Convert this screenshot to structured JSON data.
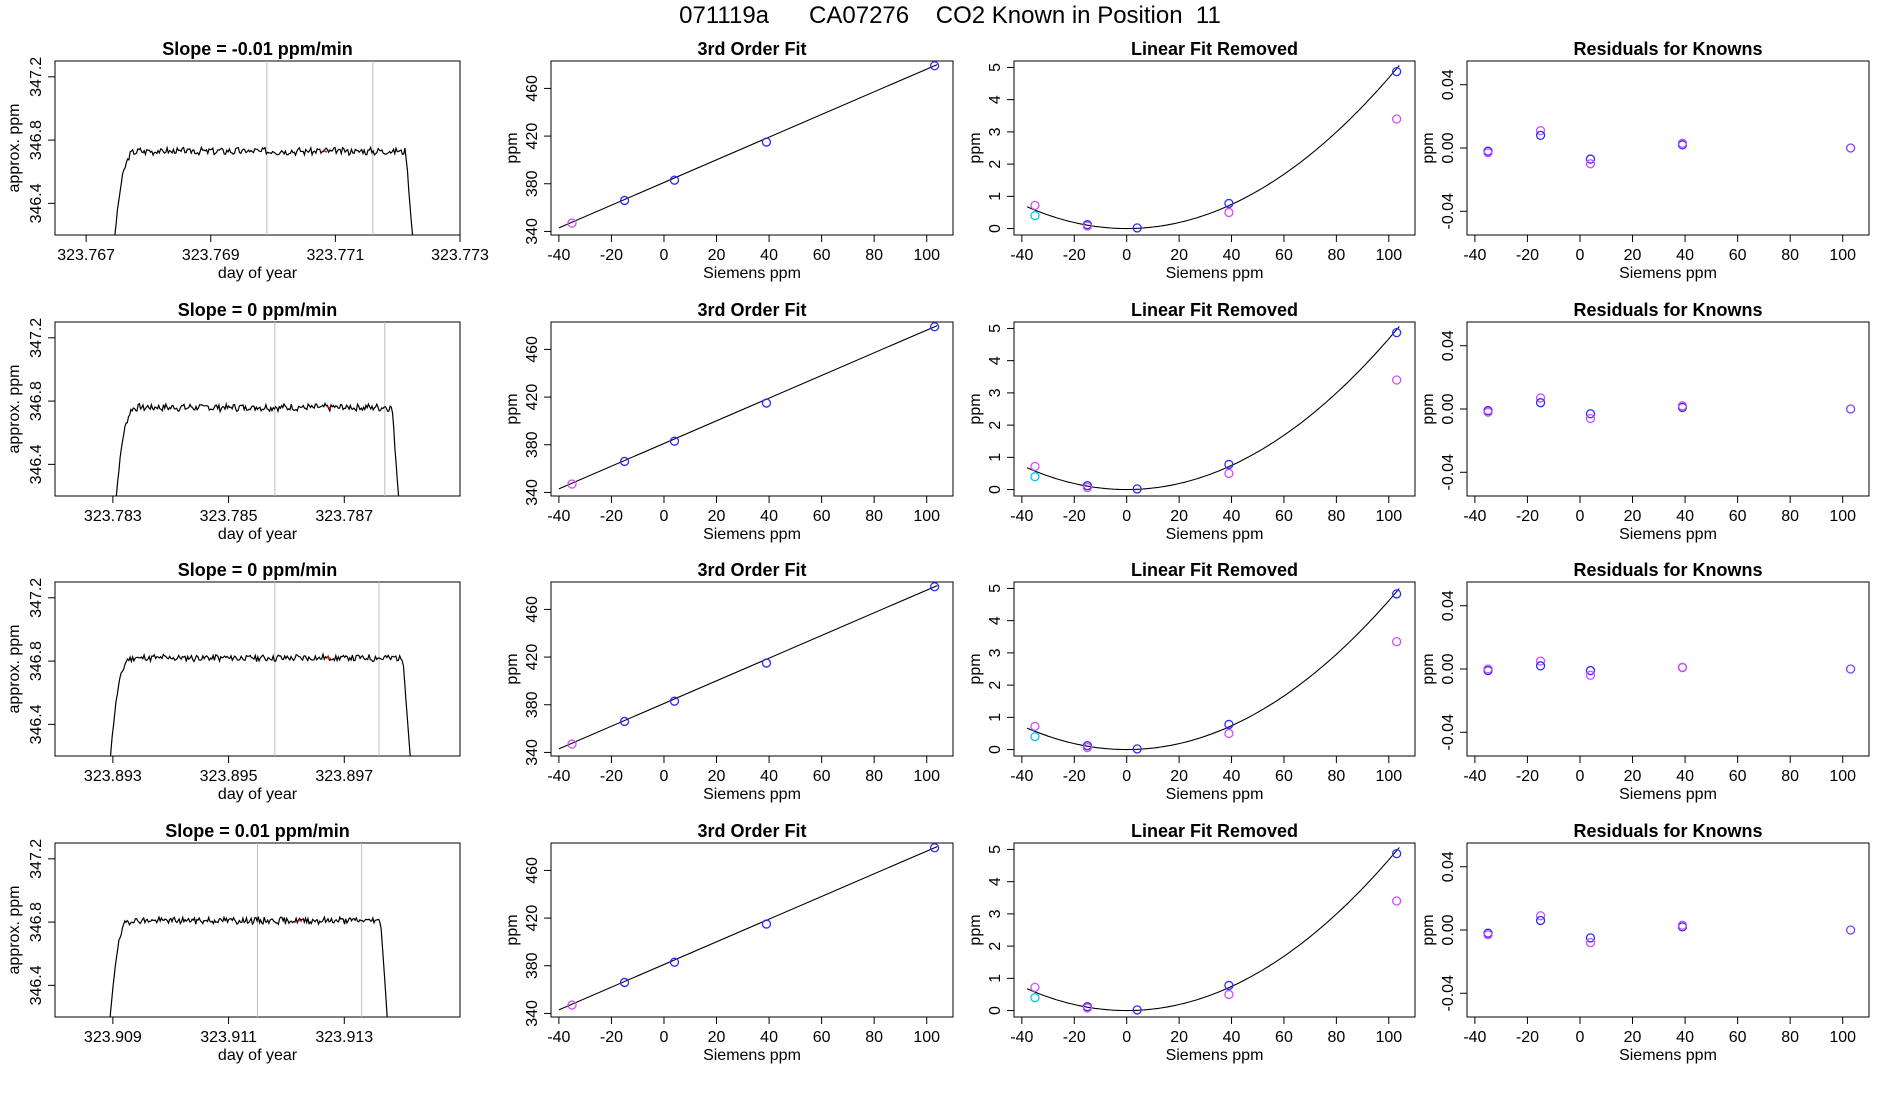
{
  "title": "071119a      CA07276    CO2 Known in Position  11",
  "colors": {
    "line": "#000000",
    "gray": "#bebebe",
    "red": "#ff0000",
    "blue": "#2b2bff",
    "violet": "#d24dff",
    "cyan": "#00c8e6",
    "purple": "#7f3fff"
  },
  "chart_data": [
    {
      "type": "line",
      "row": 0,
      "col": 0,
      "title": "Slope =  -0.01  ppm/min",
      "xlabel": "day of year",
      "ylabel": "approx. ppm",
      "xlim": [
        323.7665,
        323.773
      ],
      "ylim": [
        346.2,
        347.3
      ],
      "xticks": [
        323.767,
        323.769,
        323.771,
        323.773
      ],
      "xtick_labels": [
        "323.767",
        "323.769",
        "323.771",
        "323.773"
      ],
      "yticks": [
        346.4,
        346.8,
        347.2
      ],
      "ytick_labels": [
        "346.4",
        "346.8",
        "347.2"
      ],
      "vlines": [
        323.7699,
        323.7716
      ],
      "red_x": 323.7708,
      "x_start": 323.7674,
      "x_end": 323.7723,
      "plateau": 346.73,
      "seed": 3
    },
    {
      "type": "line",
      "row": 0,
      "col": 1,
      "title": "3rd Order Fit",
      "xlabel": "Siemens ppm",
      "ylabel": "ppm",
      "xlim": [
        -43,
        110
      ],
      "ylim": [
        337,
        483
      ],
      "xticks": [
        -40,
        -20,
        0,
        20,
        40,
        60,
        80,
        100
      ],
      "yticks": [
        340,
        380,
        420,
        460
      ],
      "fit_x": [
        -40,
        104
      ],
      "fit_y": [
        343,
        480
      ],
      "points_x": [
        -35,
        -15,
        4,
        39,
        103
      ],
      "points_y": [
        347,
        366,
        383,
        415,
        479
      ],
      "point_colors": [
        "violet",
        "blue",
        "blue",
        "blue",
        "blue"
      ]
    },
    {
      "type": "line",
      "row": 0,
      "col": 2,
      "title": "Linear Fit Removed",
      "xlabel": "Siemens ppm",
      "ylabel": "ppm",
      "xlim": [
        -43,
        110
      ],
      "ylim": [
        -0.2,
        5.2
      ],
      "xticks": [
        -40,
        -20,
        0,
        20,
        40,
        60,
        80,
        100
      ],
      "yticks": [
        0,
        1,
        2,
        3,
        4,
        5
      ],
      "curve": {
        "vertex_x": 0,
        "min_y": 0.0,
        "a": 0.000468
      },
      "curve_range": [
        -38,
        104
      ],
      "points": [
        {
          "x": -35,
          "y": 0.72,
          "c": "violet"
        },
        {
          "x": -35,
          "y": 0.4,
          "c": "cyan"
        },
        {
          "x": -15,
          "y": 0.12,
          "c": "blue"
        },
        {
          "x": -15,
          "y": 0.08,
          "c": "violet"
        },
        {
          "x": 4,
          "y": 0.02,
          "c": "blue"
        },
        {
          "x": 39,
          "y": 0.78,
          "c": "blue"
        },
        {
          "x": 39,
          "y": 0.5,
          "c": "violet"
        },
        {
          "x": 103,
          "y": 4.87,
          "c": "blue"
        },
        {
          "x": 103,
          "y": 3.4,
          "c": "violet"
        }
      ]
    },
    {
      "type": "scatter",
      "row": 0,
      "col": 3,
      "title": "Residuals for Knowns",
      "xlabel": "Siemens ppm",
      "ylabel": "ppm",
      "xlim": [
        -43,
        110
      ],
      "ylim": [
        -0.055,
        0.055
      ],
      "xticks": [
        -40,
        -20,
        0,
        20,
        40,
        60,
        80,
        100
      ],
      "yticks": [
        -0.04,
        0.0,
        0.04
      ],
      "ytick_labels": [
        "-0.04",
        "0.00",
        "0.04"
      ],
      "points": [
        {
          "x": -35,
          "y": -0.002,
          "c": "blue"
        },
        {
          "x": -35,
          "y": -0.003,
          "c": "violet"
        },
        {
          "x": -15,
          "y": 0.011,
          "c": "violet"
        },
        {
          "x": -15,
          "y": 0.008,
          "c": "blue"
        },
        {
          "x": 4,
          "y": -0.007,
          "c": "blue"
        },
        {
          "x": 4,
          "y": -0.01,
          "c": "violet"
        },
        {
          "x": 39,
          "y": 0.002,
          "c": "blue"
        },
        {
          "x": 39,
          "y": 0.003,
          "c": "violet"
        },
        {
          "x": 103,
          "y": 0.0,
          "c": "purple"
        }
      ]
    },
    {
      "type": "line",
      "row": 1,
      "col": 0,
      "title": "Slope =  0  ppm/min",
      "xlabel": "day of year",
      "ylabel": "approx. ppm",
      "xlim": [
        323.782,
        323.789
      ],
      "ylim": [
        346.2,
        347.3
      ],
      "xticks": [
        323.783,
        323.785,
        323.787
      ],
      "xtick_labels": [
        "323.783",
        "323.785",
        "323.787"
      ],
      "yticks": [
        346.4,
        346.8,
        347.2
      ],
      "ytick_labels": [
        "346.4",
        "346.8",
        "347.2"
      ],
      "vlines": [
        323.7858,
        323.7877
      ],
      "red_x": 323.7867,
      "x_start": 323.783,
      "x_end": 323.788,
      "plateau": 346.76,
      "seed": 7
    },
    {
      "type": "line",
      "row": 1,
      "col": 1,
      "title": "3rd Order Fit",
      "xlabel": "Siemens ppm",
      "ylabel": "ppm",
      "xlim": [
        -43,
        110
      ],
      "ylim": [
        337,
        483
      ],
      "xticks": [
        -40,
        -20,
        0,
        20,
        40,
        60,
        80,
        100
      ],
      "yticks": [
        340,
        380,
        420,
        460
      ],
      "fit_x": [
        -40,
        104
      ],
      "fit_y": [
        343,
        480
      ],
      "points_x": [
        -35,
        -15,
        4,
        39,
        103
      ],
      "points_y": [
        347,
        366,
        383,
        415,
        479
      ],
      "point_colors": [
        "violet",
        "blue",
        "blue",
        "blue",
        "blue"
      ]
    },
    {
      "type": "line",
      "row": 1,
      "col": 2,
      "title": "Linear Fit Removed",
      "xlabel": "Siemens ppm",
      "ylabel": "ppm",
      "xlim": [
        -43,
        110
      ],
      "ylim": [
        -0.2,
        5.2
      ],
      "xticks": [
        -40,
        -20,
        0,
        20,
        40,
        60,
        80,
        100
      ],
      "yticks": [
        0,
        1,
        2,
        3,
        4,
        5
      ],
      "curve": {
        "vertex_x": 0,
        "min_y": 0.0,
        "a": 0.000468
      },
      "curve_range": [
        -38,
        104
      ],
      "points": [
        {
          "x": -35,
          "y": 0.72,
          "c": "violet"
        },
        {
          "x": -35,
          "y": 0.4,
          "c": "cyan"
        },
        {
          "x": -15,
          "y": 0.12,
          "c": "blue"
        },
        {
          "x": -15,
          "y": 0.06,
          "c": "violet"
        },
        {
          "x": 4,
          "y": 0.02,
          "c": "blue"
        },
        {
          "x": 39,
          "y": 0.78,
          "c": "blue"
        },
        {
          "x": 39,
          "y": 0.5,
          "c": "violet"
        },
        {
          "x": 103,
          "y": 4.87,
          "c": "blue"
        },
        {
          "x": 103,
          "y": 3.4,
          "c": "violet"
        }
      ]
    },
    {
      "type": "scatter",
      "row": 1,
      "col": 3,
      "title": "Residuals for Knowns",
      "xlabel": "Siemens ppm",
      "ylabel": "ppm",
      "xlim": [
        -43,
        110
      ],
      "ylim": [
        -0.055,
        0.055
      ],
      "xticks": [
        -40,
        -20,
        0,
        20,
        40,
        60,
        80,
        100
      ],
      "yticks": [
        -0.04,
        0.0,
        0.04
      ],
      "ytick_labels": [
        "-0.04",
        "0.00",
        "0.04"
      ],
      "points": [
        {
          "x": -35,
          "y": -0.001,
          "c": "blue"
        },
        {
          "x": -35,
          "y": -0.002,
          "c": "violet"
        },
        {
          "x": -15,
          "y": 0.007,
          "c": "violet"
        },
        {
          "x": -15,
          "y": 0.004,
          "c": "blue"
        },
        {
          "x": 4,
          "y": -0.003,
          "c": "blue"
        },
        {
          "x": 4,
          "y": -0.006,
          "c": "violet"
        },
        {
          "x": 39,
          "y": 0.001,
          "c": "blue"
        },
        {
          "x": 39,
          "y": 0.002,
          "c": "violet"
        },
        {
          "x": 103,
          "y": 0.0,
          "c": "purple"
        }
      ]
    },
    {
      "type": "line",
      "row": 2,
      "col": 0,
      "title": "Slope =  0  ppm/min",
      "xlabel": "day of year",
      "ylabel": "approx. ppm",
      "xlim": [
        323.892,
        323.899
      ],
      "ylim": [
        346.2,
        347.3
      ],
      "xticks": [
        323.893,
        323.895,
        323.897
      ],
      "xtick_labels": [
        "323.893",
        "323.895",
        "323.897"
      ],
      "yticks": [
        346.4,
        346.8,
        347.2
      ],
      "ytick_labels": [
        "346.4",
        "346.8",
        "347.2"
      ],
      "vlines": [
        323.8958,
        323.8976
      ],
      "red_x": 323.8967,
      "x_start": 323.8929,
      "x_end": 323.8982,
      "plateau": 346.82,
      "seed": 11
    },
    {
      "type": "line",
      "row": 2,
      "col": 1,
      "title": "3rd Order Fit",
      "xlabel": "Siemens ppm",
      "ylabel": "ppm",
      "xlim": [
        -43,
        110
      ],
      "ylim": [
        337,
        483
      ],
      "xticks": [
        -40,
        -20,
        0,
        20,
        40,
        60,
        80,
        100
      ],
      "yticks": [
        340,
        380,
        420,
        460
      ],
      "fit_x": [
        -40,
        104
      ],
      "fit_y": [
        343,
        480
      ],
      "points_x": [
        -35,
        -15,
        4,
        39,
        103
      ],
      "points_y": [
        347,
        366,
        383,
        415,
        479
      ],
      "point_colors": [
        "violet",
        "blue",
        "blue",
        "blue",
        "blue"
      ]
    },
    {
      "type": "line",
      "row": 2,
      "col": 2,
      "title": "Linear Fit Removed",
      "xlabel": "Siemens ppm",
      "ylabel": "ppm",
      "xlim": [
        -43,
        110
      ],
      "ylim": [
        -0.2,
        5.2
      ],
      "xticks": [
        -40,
        -20,
        0,
        20,
        40,
        60,
        80,
        100
      ],
      "yticks": [
        0,
        1,
        2,
        3,
        4,
        5
      ],
      "curve": {
        "vertex_x": 0,
        "min_y": 0.0,
        "a": 0.000462
      },
      "curve_range": [
        -38,
        104
      ],
      "points": [
        {
          "x": -35,
          "y": 0.72,
          "c": "violet"
        },
        {
          "x": -35,
          "y": 0.4,
          "c": "cyan"
        },
        {
          "x": -15,
          "y": 0.12,
          "c": "blue"
        },
        {
          "x": -15,
          "y": 0.06,
          "c": "violet"
        },
        {
          "x": 4,
          "y": 0.02,
          "c": "blue"
        },
        {
          "x": 39,
          "y": 0.78,
          "c": "blue"
        },
        {
          "x": 39,
          "y": 0.5,
          "c": "violet"
        },
        {
          "x": 103,
          "y": 4.83,
          "c": "blue"
        },
        {
          "x": 103,
          "y": 3.35,
          "c": "violet"
        }
      ]
    },
    {
      "type": "scatter",
      "row": 2,
      "col": 3,
      "title": "Residuals for Knowns",
      "xlabel": "Siemens ppm",
      "ylabel": "ppm",
      "xlim": [
        -43,
        110
      ],
      "ylim": [
        -0.055,
        0.055
      ],
      "xticks": [
        -40,
        -20,
        0,
        20,
        40,
        60,
        80,
        100
      ],
      "yticks": [
        -0.04,
        0.0,
        0.04
      ],
      "ytick_labels": [
        "-0.04",
        "0.00",
        "0.04"
      ],
      "points": [
        {
          "x": -35,
          "y": -0.001,
          "c": "blue"
        },
        {
          "x": -35,
          "y": 0.0,
          "c": "violet"
        },
        {
          "x": -15,
          "y": 0.005,
          "c": "violet"
        },
        {
          "x": -15,
          "y": 0.002,
          "c": "blue"
        },
        {
          "x": 4,
          "y": -0.001,
          "c": "blue"
        },
        {
          "x": 4,
          "y": -0.004,
          "c": "violet"
        },
        {
          "x": 39,
          "y": 0.001,
          "c": "blue"
        },
        {
          "x": 39,
          "y": 0.001,
          "c": "violet"
        },
        {
          "x": 103,
          "y": 0.0,
          "c": "purple"
        }
      ]
    },
    {
      "type": "line",
      "row": 3,
      "col": 0,
      "title": "Slope =  0.01  ppm/min",
      "xlabel": "day of year",
      "ylabel": "approx. ppm",
      "xlim": [
        323.908,
        323.915
      ],
      "ylim": [
        346.2,
        347.3
      ],
      "xticks": [
        323.909,
        323.911,
        323.913
      ],
      "xtick_labels": [
        "323.909",
        "323.911",
        "323.913"
      ],
      "yticks": [
        346.4,
        346.8,
        347.2
      ],
      "ytick_labels": [
        "346.4",
        "346.8",
        "347.2"
      ],
      "vlines": [
        323.9115,
        323.9133
      ],
      "red_x": 323.9122,
      "x_start": 323.9089,
      "x_end": 323.9138,
      "plateau": 346.81,
      "seed": 19
    },
    {
      "type": "line",
      "row": 3,
      "col": 1,
      "title": "3rd Order Fit",
      "xlabel": "Siemens ppm",
      "ylabel": "ppm",
      "xlim": [
        -43,
        110
      ],
      "ylim": [
        337,
        483
      ],
      "xticks": [
        -40,
        -20,
        0,
        20,
        40,
        60,
        80,
        100
      ],
      "yticks": [
        340,
        380,
        420,
        460
      ],
      "fit_x": [
        -40,
        104
      ],
      "fit_y": [
        343,
        480
      ],
      "points_x": [
        -35,
        -15,
        4,
        39,
        103
      ],
      "points_y": [
        347,
        366,
        383,
        415,
        479
      ],
      "point_colors": [
        "violet",
        "blue",
        "blue",
        "blue",
        "blue"
      ]
    },
    {
      "type": "line",
      "row": 3,
      "col": 2,
      "title": "Linear Fit Removed",
      "xlabel": "Siemens ppm",
      "ylabel": "ppm",
      "xlim": [
        -43,
        110
      ],
      "ylim": [
        -0.2,
        5.2
      ],
      "xticks": [
        -40,
        -20,
        0,
        20,
        40,
        60,
        80,
        100
      ],
      "yticks": [
        0,
        1,
        2,
        3,
        4,
        5
      ],
      "curve": {
        "vertex_x": 0,
        "min_y": 0.0,
        "a": 0.000468
      },
      "curve_range": [
        -38,
        104
      ],
      "points": [
        {
          "x": -35,
          "y": 0.72,
          "c": "violet"
        },
        {
          "x": -35,
          "y": 0.4,
          "c": "cyan"
        },
        {
          "x": -15,
          "y": 0.12,
          "c": "blue"
        },
        {
          "x": -15,
          "y": 0.08,
          "c": "violet"
        },
        {
          "x": 4,
          "y": 0.02,
          "c": "blue"
        },
        {
          "x": 39,
          "y": 0.78,
          "c": "blue"
        },
        {
          "x": 39,
          "y": 0.5,
          "c": "violet"
        },
        {
          "x": 103,
          "y": 4.87,
          "c": "blue"
        },
        {
          "x": 103,
          "y": 3.4,
          "c": "violet"
        }
      ]
    },
    {
      "type": "scatter",
      "row": 3,
      "col": 3,
      "title": "Residuals for Knowns",
      "xlabel": "Siemens ppm",
      "ylabel": "ppm",
      "xlim": [
        -43,
        110
      ],
      "ylim": [
        -0.055,
        0.055
      ],
      "xticks": [
        -40,
        -20,
        0,
        20,
        40,
        60,
        80,
        100
      ],
      "yticks": [
        -0.04,
        0.0,
        0.04
      ],
      "ytick_labels": [
        "-0.04",
        "0.00",
        "0.04"
      ],
      "points": [
        {
          "x": -35,
          "y": -0.002,
          "c": "blue"
        },
        {
          "x": -35,
          "y": -0.003,
          "c": "violet"
        },
        {
          "x": -15,
          "y": 0.009,
          "c": "violet"
        },
        {
          "x": -15,
          "y": 0.006,
          "c": "blue"
        },
        {
          "x": 4,
          "y": -0.005,
          "c": "blue"
        },
        {
          "x": 4,
          "y": -0.008,
          "c": "violet"
        },
        {
          "x": 39,
          "y": 0.002,
          "c": "blue"
        },
        {
          "x": 39,
          "y": 0.003,
          "c": "violet"
        },
        {
          "x": 103,
          "y": 0.0,
          "c": "purple"
        }
      ]
    }
  ]
}
